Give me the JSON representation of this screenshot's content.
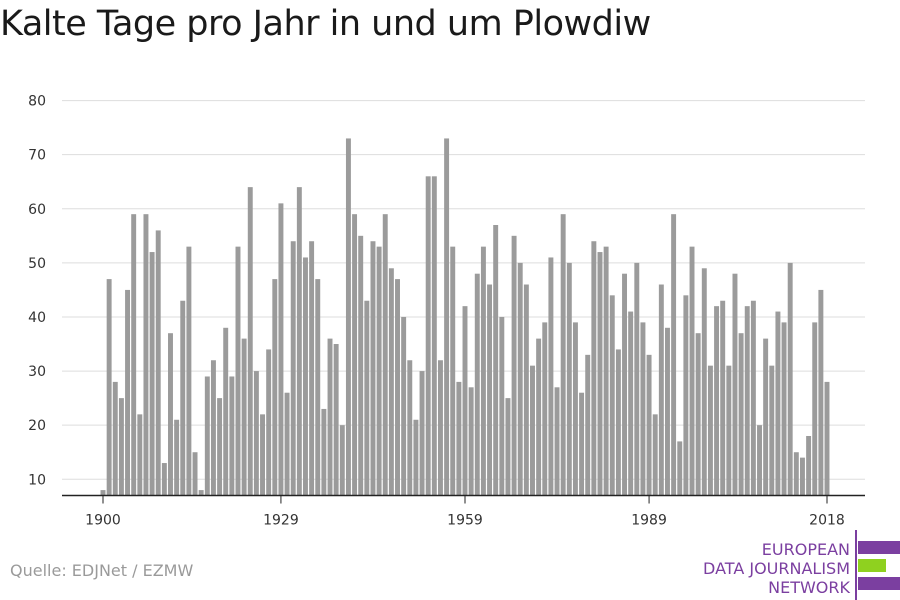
{
  "title": "Kalte Tage pro Jahr in und um Plowdiw",
  "source": "Quelle: EDJNet / EZMW",
  "logo": {
    "line1": "EUROPEAN",
    "line2": "DATA JOURNALISM",
    "line3": "NETWORK",
    "colors": {
      "purple": "#7b3fa0",
      "green": "#8fd11f"
    }
  },
  "chart_data": {
    "type": "bar",
    "title": "Kalte Tage pro Jahr in und um Plowdiw",
    "xlabel": "",
    "ylabel": "",
    "ylim": [
      7,
      80
    ],
    "yticks": [
      10,
      20,
      30,
      40,
      50,
      60,
      70,
      80
    ],
    "xticks": [
      "1900",
      "1929",
      "1959",
      "1989",
      "2018"
    ],
    "bar_color": "#9b9b9b",
    "grid": true,
    "categories": [
      1900,
      1901,
      1902,
      1903,
      1904,
      1905,
      1906,
      1907,
      1908,
      1909,
      1910,
      1911,
      1912,
      1913,
      1914,
      1915,
      1916,
      1917,
      1918,
      1919,
      1920,
      1921,
      1922,
      1923,
      1924,
      1925,
      1926,
      1927,
      1928,
      1929,
      1930,
      1931,
      1932,
      1933,
      1934,
      1935,
      1936,
      1937,
      1938,
      1939,
      1940,
      1941,
      1942,
      1943,
      1944,
      1945,
      1946,
      1947,
      1948,
      1949,
      1950,
      1951,
      1952,
      1953,
      1954,
      1955,
      1956,
      1957,
      1958,
      1959,
      1960,
      1961,
      1962,
      1963,
      1964,
      1965,
      1966,
      1967,
      1968,
      1969,
      1970,
      1971,
      1972,
      1973,
      1974,
      1975,
      1976,
      1977,
      1978,
      1979,
      1980,
      1981,
      1982,
      1983,
      1984,
      1985,
      1986,
      1987,
      1988,
      1989,
      1990,
      1991,
      1992,
      1993,
      1994,
      1995,
      1996,
      1997,
      1998,
      1999,
      2000,
      2001,
      2002,
      2003,
      2004,
      2005,
      2006,
      2007,
      2008,
      2009,
      2010,
      2011,
      2012,
      2013,
      2014,
      2015,
      2016,
      2017,
      2018
    ],
    "values": [
      8,
      47,
      28,
      25,
      45,
      59,
      22,
      59,
      52,
      56,
      13,
      37,
      21,
      43,
      53,
      15,
      8,
      29,
      32,
      25,
      38,
      29,
      53,
      36,
      64,
      30,
      22,
      34,
      47,
      61,
      26,
      54,
      64,
      51,
      54,
      47,
      23,
      36,
      35,
      20,
      73,
      59,
      55,
      43,
      54,
      53,
      59,
      49,
      47,
      40,
      32,
      21,
      30,
      66,
      66,
      32,
      73,
      53,
      28,
      42,
      27,
      48,
      53,
      46,
      57,
      40,
      25,
      55,
      50,
      46,
      31,
      36,
      39,
      51,
      27,
      59,
      50,
      39,
      26,
      33,
      54,
      52,
      53,
      44,
      34,
      48,
      41,
      50,
      39,
      33,
      22,
      46,
      38,
      59,
      17,
      44,
      53,
      37,
      49,
      31,
      42,
      43,
      31,
      48,
      37,
      42,
      43,
      20,
      36,
      31,
      41,
      39,
      50,
      15,
      14,
      18,
      39,
      45,
      28
    ]
  }
}
